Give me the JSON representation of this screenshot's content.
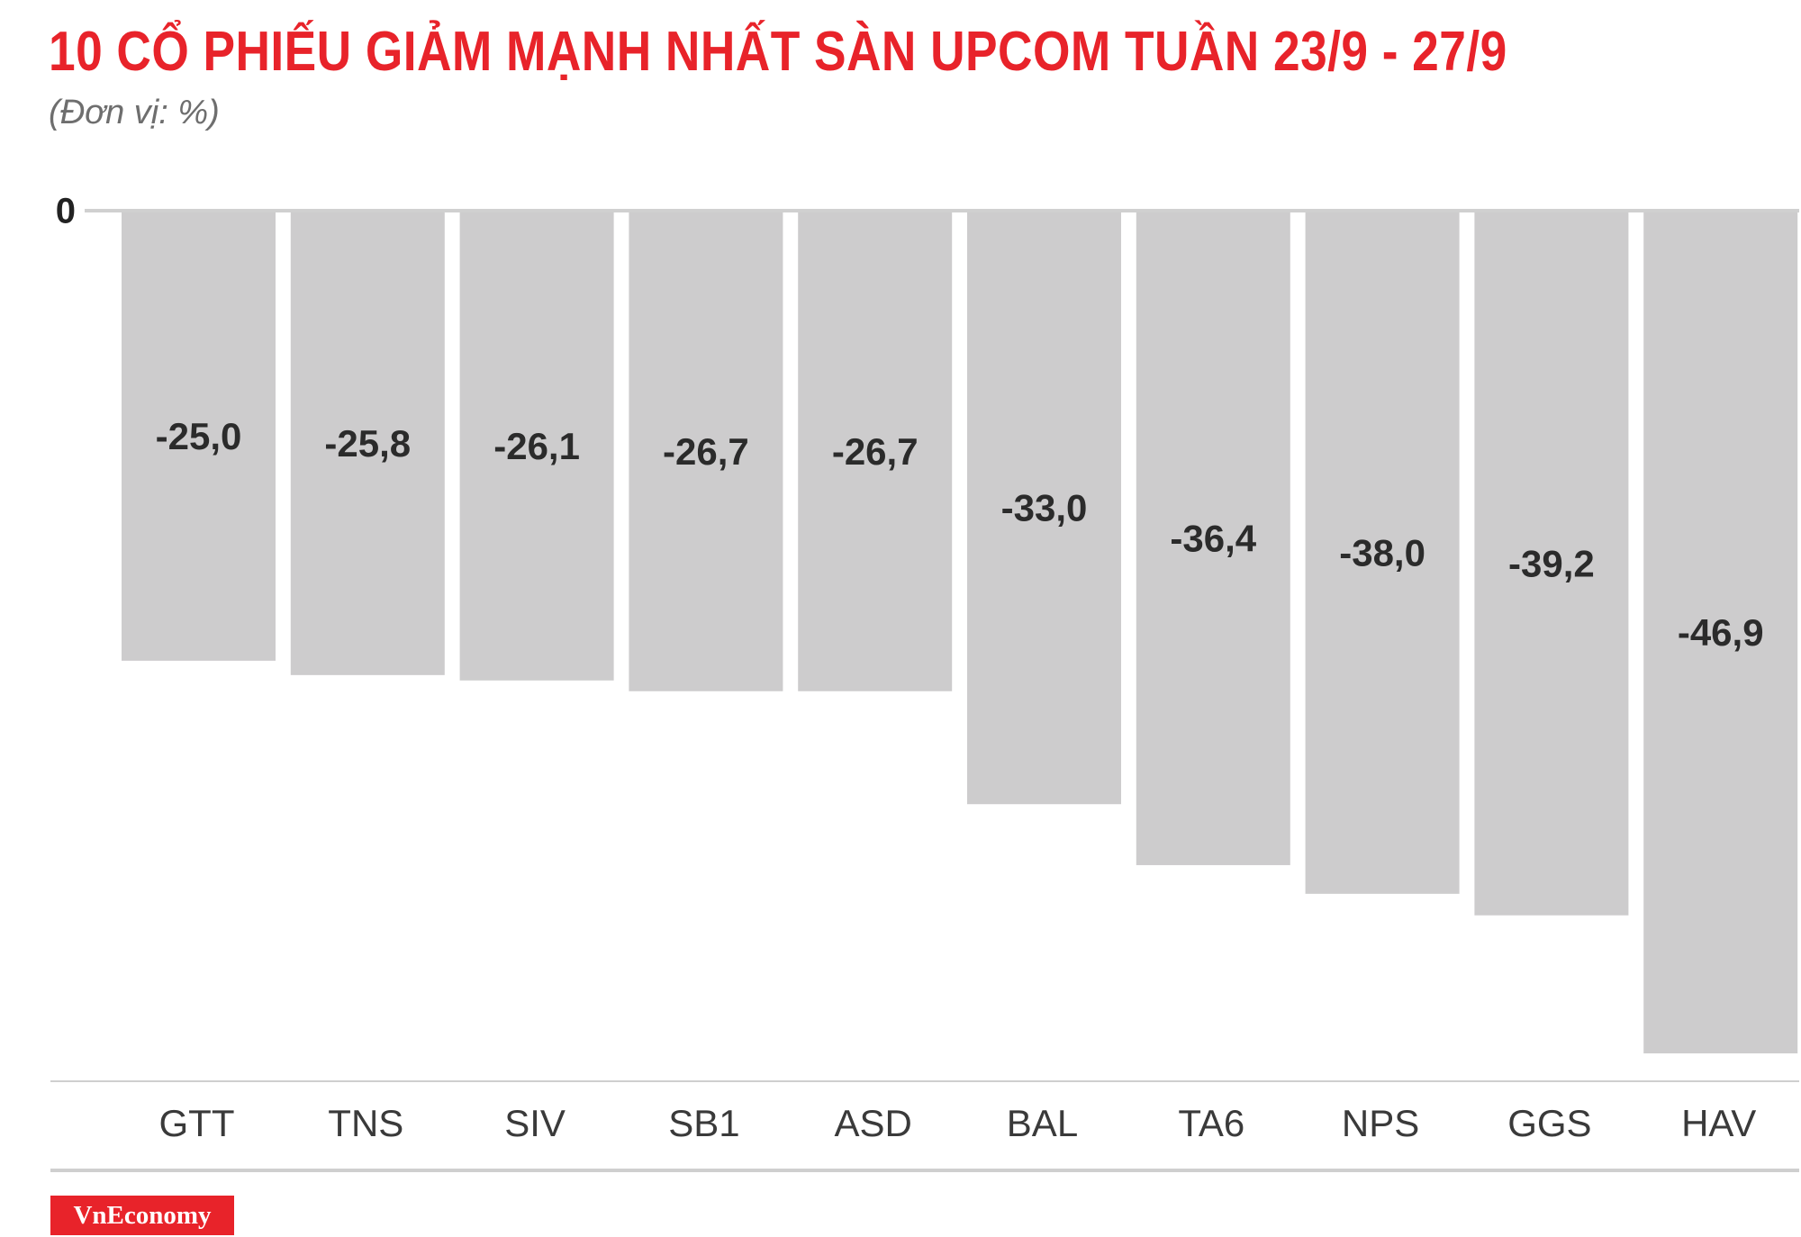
{
  "title": "10 CỔ PHIẾU GIẢM MẠNH NHẤT SÀN UPCOM TUẦN 23/9 - 27/9",
  "subtitle": "(Đơn vị: %)",
  "brand": "VnEconomy",
  "colors": {
    "title": "#e8232a",
    "bar": "#cdcccd",
    "brand_bg": "#e8232a"
  },
  "chart_data": {
    "type": "bar",
    "title": "10 CỔ PHIẾU GIẢM MẠNH NHẤT SÀN UPCOM TUẦN 23/9 - 27/9",
    "subtitle": "(Đơn vị: %)",
    "categories": [
      "GTT",
      "TNS",
      "SIV",
      "SB1",
      "ASD",
      "BAL",
      "TA6",
      "NPS",
      "GGS",
      "HAV"
    ],
    "values": [
      -25.0,
      -25.8,
      -26.1,
      -26.7,
      -26.7,
      -33.0,
      -36.4,
      -38.0,
      -39.2,
      -46.9
    ],
    "value_labels": [
      "-25,0",
      "-25,8",
      "-26,1",
      "-26,7",
      "-26,7",
      "-33,0",
      "-36,4",
      "-38,0",
      "-39,2",
      "-46,9"
    ],
    "y_ticks": [
      {
        "value": 0,
        "label": "0"
      }
    ],
    "ylim": [
      -47.7,
      0
    ],
    "grid": false,
    "legend": "none"
  }
}
